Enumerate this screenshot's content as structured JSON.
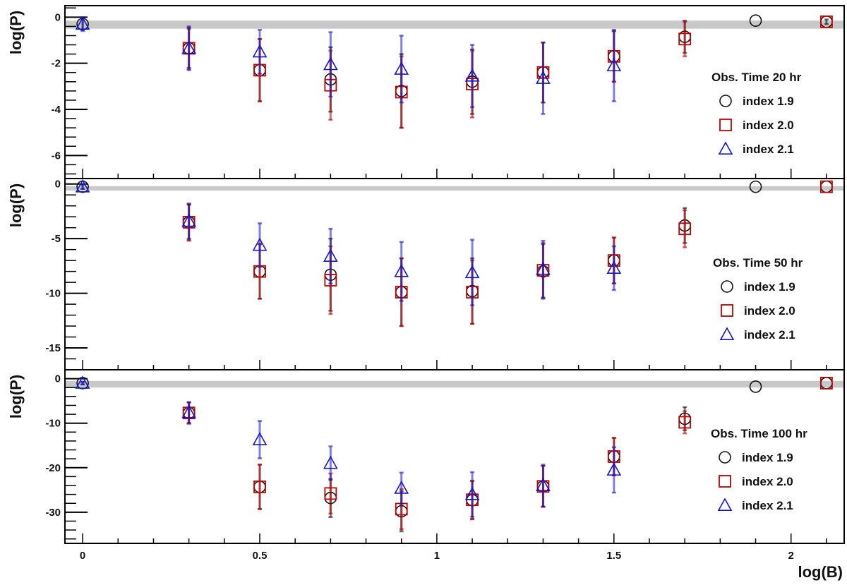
{
  "chart_data": {
    "type": "scatter",
    "xlabel": "log(B)",
    "x_ticks": [
      0,
      0.5,
      1,
      1.5,
      2
    ],
    "x_tick_labels": [
      "0",
      "0.5",
      "1",
      "1.5",
      "2"
    ],
    "xlim": [
      -0.05,
      2.15
    ],
    "colors": {
      "index 1.9": "#111111",
      "index 2.0": "#c00000",
      "index 2.1": "#1515d0",
      "band": "#c8c8c8"
    },
    "panels": [
      {
        "ylabel": "log(P)",
        "ylim": [
          -7,
          0.5
        ],
        "y_ticks": [
          0,
          -2,
          -4,
          -6
        ],
        "y_tick_labels": [
          "0",
          "-2",
          "-4",
          "-6"
        ],
        "reference_band": [
          -0.5,
          -0.15
        ],
        "legend": {
          "title": "Obs. Time 20 hr",
          "entries": [
            {
              "marker": "circle",
              "label": "index 1.9"
            },
            {
              "marker": "square",
              "label": "index 2.0"
            },
            {
              "marker": "triangle",
              "label": "index 2.1"
            }
          ]
        },
        "series": [
          {
            "name": "index 1.9",
            "marker": "circle",
            "points": [
              {
                "x": 0,
                "y": -0.3,
                "err": 0.25
              },
              {
                "x": 0.3,
                "y": -1.35,
                "err": 0.85
              },
              {
                "x": 0.5,
                "y": -2.3,
                "err": 1.35
              },
              {
                "x": 0.7,
                "y": -2.7,
                "err": 1.4
              },
              {
                "x": 0.9,
                "y": -3.2,
                "err": 1.6
              },
              {
                "x": 1.1,
                "y": -2.8,
                "err": 1.4
              },
              {
                "x": 1.3,
                "y": -2.4,
                "err": 1.3
              },
              {
                "x": 1.5,
                "y": -1.7,
                "err": 1.1
              },
              {
                "x": 1.7,
                "y": -0.85,
                "err": 0.7
              },
              {
                "x": 1.9,
                "y": -0.15,
                "err": 0
              },
              {
                "x": 2.1,
                "y": -0.2,
                "err": 0.1
              }
            ]
          },
          {
            "name": "index 2.0",
            "marker": "square",
            "points": [
              {
                "x": 0.3,
                "y": -1.35,
                "err": 0.9
              },
              {
                "x": 0.5,
                "y": -2.3,
                "err": 1.35
              },
              {
                "x": 0.7,
                "y": -2.95,
                "err": 1.5
              },
              {
                "x": 0.9,
                "y": -3.25,
                "err": 1.55
              },
              {
                "x": 1.1,
                "y": -2.9,
                "err": 1.45
              },
              {
                "x": 1.3,
                "y": -2.4,
                "err": 1.3
              },
              {
                "x": 1.5,
                "y": -1.7,
                "err": 1.1
              },
              {
                "x": 1.7,
                "y": -0.95,
                "err": 0.75
              },
              {
                "x": 2.1,
                "y": -0.2,
                "err": 0
              }
            ]
          },
          {
            "name": "index 2.1",
            "marker": "triangle",
            "points": [
              {
                "x": 0,
                "y": -0.3,
                "err": 0.3
              },
              {
                "x": 0.3,
                "y": -1.35,
                "err": 0.95
              },
              {
                "x": 0.5,
                "y": -1.5,
                "err": 0.95
              },
              {
                "x": 0.7,
                "y": -2.05,
                "err": 1.4
              },
              {
                "x": 0.9,
                "y": -2.25,
                "err": 1.45
              },
              {
                "x": 1.1,
                "y": -2.55,
                "err": 1.35
              },
              {
                "x": 1.3,
                "y": -2.65,
                "err": 1.55
              },
              {
                "x": 1.5,
                "y": -2.1,
                "err": 1.55
              }
            ]
          }
        ]
      },
      {
        "ylabel": "log(P)",
        "ylim": [
          -17,
          0.5
        ],
        "y_ticks": [
          0,
          -5,
          -10,
          -15
        ],
        "y_tick_labels": [
          "0",
          "-5",
          "-10",
          "-15"
        ],
        "reference_band": [
          -0.6,
          -0.2
        ],
        "legend": {
          "title": "Obs. Time 50 hr",
          "entries": [
            {
              "marker": "circle",
              "label": "index 1.9"
            },
            {
              "marker": "square",
              "label": "index 2.0"
            },
            {
              "marker": "triangle",
              "label": "index 2.1"
            }
          ]
        },
        "series": [
          {
            "name": "index 1.9",
            "marker": "circle",
            "points": [
              {
                "x": 0,
                "y": -0.25,
                "err": 0.2
              },
              {
                "x": 0.3,
                "y": -3.5,
                "err": 1.6
              },
              {
                "x": 0.5,
                "y": -8.0,
                "err": 2.5
              },
              {
                "x": 0.7,
                "y": -8.3,
                "err": 3.3
              },
              {
                "x": 0.9,
                "y": -9.9,
                "err": 3.1
              },
              {
                "x": 1.1,
                "y": -9.8,
                "err": 3.0
              },
              {
                "x": 1.3,
                "y": -8.0,
                "err": 2.5
              },
              {
                "x": 1.5,
                "y": -7.0,
                "err": 2.1
              },
              {
                "x": 1.7,
                "y": -3.8,
                "err": 1.6
              },
              {
                "x": 1.9,
                "y": -0.25,
                "err": 0
              },
              {
                "x": 2.1,
                "y": -0.25,
                "err": 0
              }
            ]
          },
          {
            "name": "index 2.0",
            "marker": "square",
            "points": [
              {
                "x": 0.3,
                "y": -3.5,
                "err": 1.7
              },
              {
                "x": 0.5,
                "y": -8.0,
                "err": 2.5
              },
              {
                "x": 0.7,
                "y": -8.8,
                "err": 3.1
              },
              {
                "x": 0.9,
                "y": -9.9,
                "err": 3.1
              },
              {
                "x": 1.1,
                "y": -9.9,
                "err": 2.9
              },
              {
                "x": 1.3,
                "y": -7.9,
                "err": 2.5
              },
              {
                "x": 1.5,
                "y": -7.0,
                "err": 2.1
              },
              {
                "x": 1.7,
                "y": -4.1,
                "err": 1.7
              },
              {
                "x": 2.1,
                "y": -0.25,
                "err": 0
              }
            ]
          },
          {
            "name": "index 2.1",
            "marker": "triangle",
            "points": [
              {
                "x": 0,
                "y": -0.25,
                "err": 0.2
              },
              {
                "x": 0.3,
                "y": -3.4,
                "err": 1.6
              },
              {
                "x": 0.5,
                "y": -5.6,
                "err": 2.0
              },
              {
                "x": 0.7,
                "y": -6.6,
                "err": 2.5
              },
              {
                "x": 0.9,
                "y": -8.0,
                "err": 2.7
              },
              {
                "x": 1.1,
                "y": -8.1,
                "err": 3.0
              },
              {
                "x": 1.3,
                "y": -7.8,
                "err": 2.6
              },
              {
                "x": 1.5,
                "y": -7.7,
                "err": 2.0
              }
            ]
          }
        ]
      },
      {
        "ylabel": "log(P)",
        "ylim": [
          -37,
          2
        ],
        "y_ticks": [
          0,
          -10,
          -20,
          -30
        ],
        "y_tick_labels": [
          "0",
          "-10",
          "-20",
          "-30"
        ],
        "reference_band": [
          -2.0,
          -0.5
        ],
        "legend": {
          "title": "Obs. Time 100 hr",
          "entries": [
            {
              "marker": "circle",
              "label": "index 1.9"
            },
            {
              "marker": "square",
              "label": "index 2.0"
            },
            {
              "marker": "triangle",
              "label": "index 2.1"
            }
          ]
        },
        "series": [
          {
            "name": "index 1.9",
            "marker": "circle",
            "points": [
              {
                "x": 0,
                "y": -1.0,
                "err": 0.3
              },
              {
                "x": 0.3,
                "y": -7.7,
                "err": 2.4
              },
              {
                "x": 0.5,
                "y": -24.3,
                "err": 5.0
              },
              {
                "x": 0.7,
                "y": -26.8,
                "err": 4.3
              },
              {
                "x": 0.9,
                "y": -29.8,
                "err": 4.5
              },
              {
                "x": 1.1,
                "y": -27.3,
                "err": 4.3
              },
              {
                "x": 1.3,
                "y": -24.2,
                "err": 4.6
              },
              {
                "x": 1.5,
                "y": -17.5,
                "err": 4.2
              },
              {
                "x": 1.7,
                "y": -9.0,
                "err": 2.6
              },
              {
                "x": 1.9,
                "y": -1.8,
                "err": 0
              },
              {
                "x": 2.1,
                "y": -1.0,
                "err": 0
              }
            ]
          },
          {
            "name": "index 2.0",
            "marker": "square",
            "points": [
              {
                "x": 0.3,
                "y": -7.7,
                "err": 2.4
              },
              {
                "x": 0.5,
                "y": -24.3,
                "err": 5.0
              },
              {
                "x": 0.7,
                "y": -25.8,
                "err": 4.5
              },
              {
                "x": 0.9,
                "y": -29.3,
                "err": 4.5
              },
              {
                "x": 1.1,
                "y": -27.2,
                "err": 4.3
              },
              {
                "x": 1.3,
                "y": -24.2,
                "err": 4.6
              },
              {
                "x": 1.5,
                "y": -17.5,
                "err": 4.2
              },
              {
                "x": 1.7,
                "y": -9.8,
                "err": 2.5
              },
              {
                "x": 2.1,
                "y": -1.0,
                "err": 0
              }
            ]
          },
          {
            "name": "index 2.1",
            "marker": "triangle",
            "points": [
              {
                "x": 0,
                "y": -1.0,
                "err": 0.3
              },
              {
                "x": 0.3,
                "y": -7.6,
                "err": 2.3
              },
              {
                "x": 0.5,
                "y": -13.7,
                "err": 4.2
              },
              {
                "x": 0.7,
                "y": -19.0,
                "err": 3.8
              },
              {
                "x": 0.9,
                "y": -24.6,
                "err": 3.5
              },
              {
                "x": 1.1,
                "y": -26.0,
                "err": 5.0
              },
              {
                "x": 1.3,
                "y": -24.0,
                "err": 4.7
              },
              {
                "x": 1.5,
                "y": -20.5,
                "err": 5.1
              }
            ]
          }
        ]
      }
    ]
  }
}
